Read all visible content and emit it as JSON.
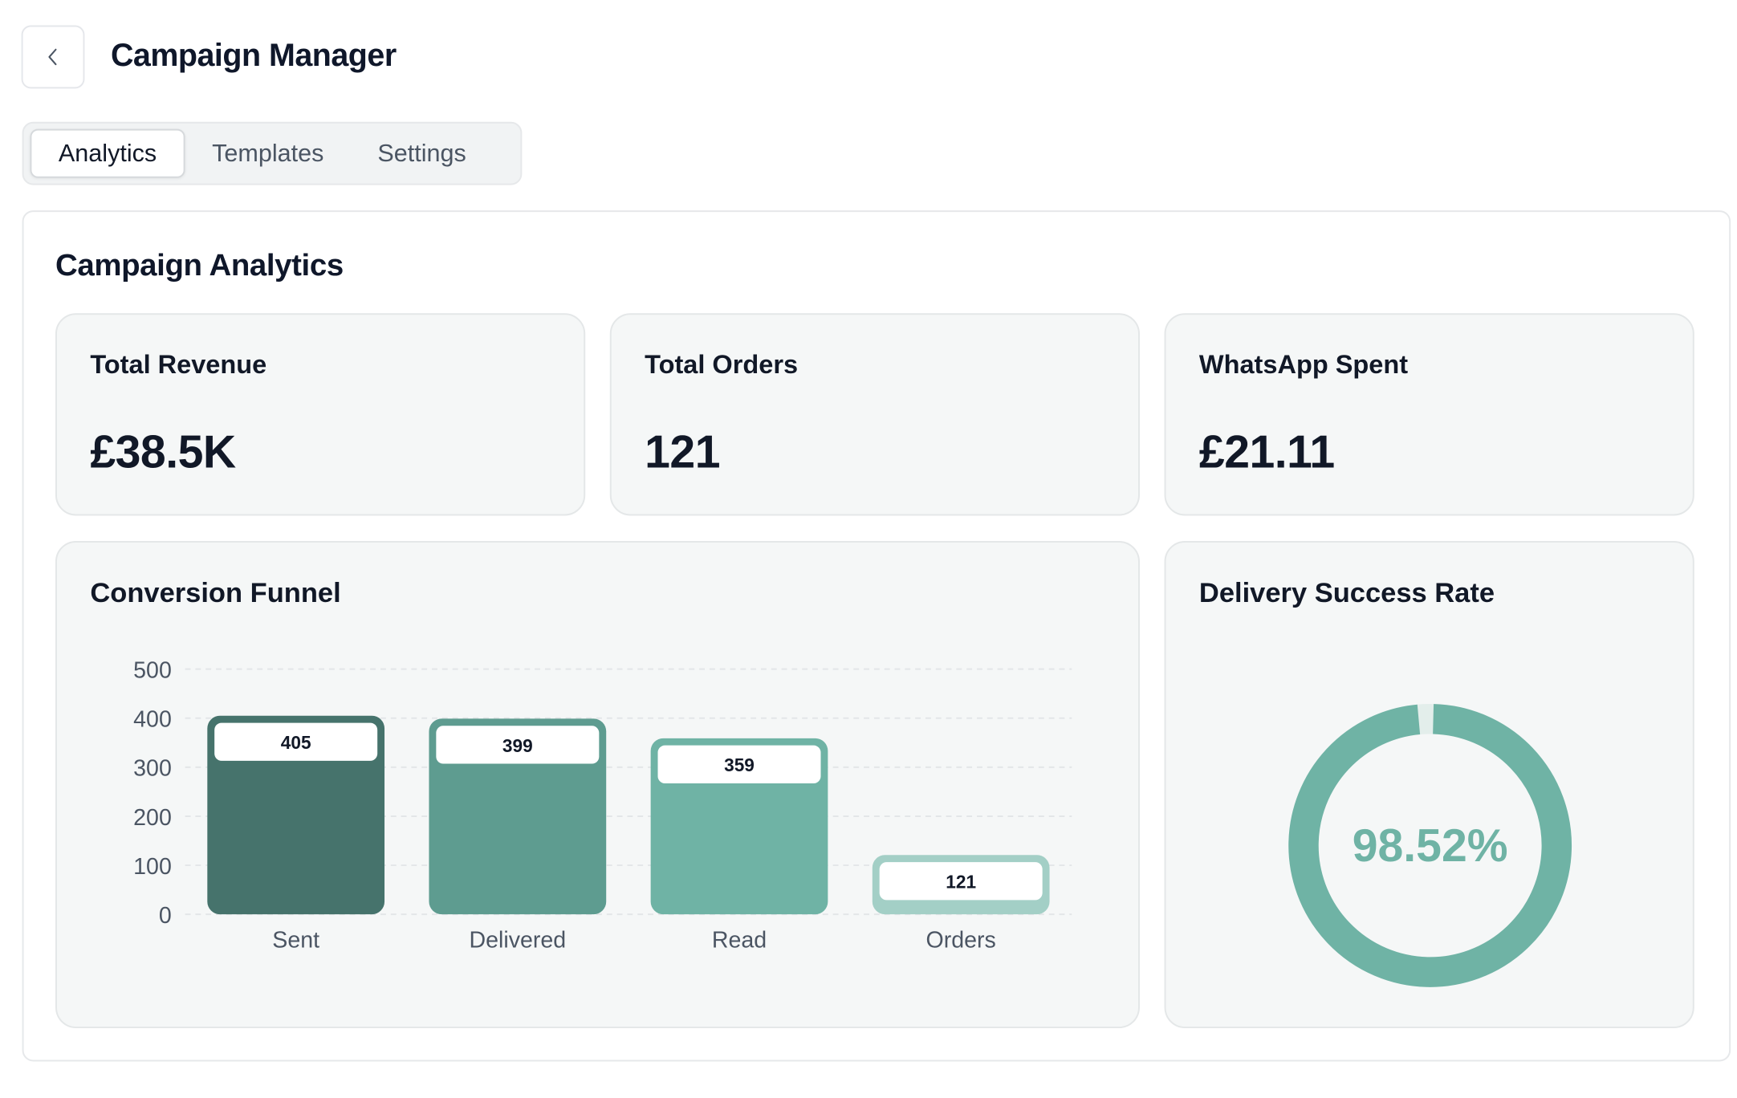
{
  "header": {
    "title": "Campaign Manager",
    "back_icon": "chevron-left-icon"
  },
  "tabs": [
    {
      "label": "Analytics",
      "active": true
    },
    {
      "label": "Templates",
      "active": false
    },
    {
      "label": "Settings",
      "active": false
    }
  ],
  "main": {
    "title": "Campaign Analytics",
    "stats": {
      "revenue": {
        "label": "Total Revenue",
        "value": "£38.5K"
      },
      "orders": {
        "label": "Total Orders",
        "value": "121"
      },
      "whatsapp": {
        "label": "WhatsApp Spent",
        "value": "£21.11"
      }
    },
    "funnel": {
      "title": "Conversion Funnel"
    },
    "delivery": {
      "title": "Delivery Success Rate",
      "value_label": "98.52%"
    }
  },
  "colors": {
    "sent": "#46736c",
    "delivered": "#5e9c90",
    "read": "#6fb3a5",
    "orders": "#a3cfc6",
    "donut": "#6fb3a5",
    "donut_track": "#e3eeeb",
    "grid": "#e3e6e8",
    "axis_text": "#4b5563"
  },
  "chart_data": [
    {
      "type": "bar",
      "title": "Conversion Funnel",
      "categories": [
        "Sent",
        "Delivered",
        "Read",
        "Orders"
      ],
      "values": [
        405,
        399,
        359,
        121
      ],
      "data_labels": [
        "405",
        "399",
        "359",
        "121"
      ],
      "ylim": [
        0,
        500
      ],
      "yticks": [
        0,
        100,
        200,
        300,
        400,
        500
      ],
      "xlabel": "",
      "ylabel": "",
      "grid": true
    },
    {
      "type": "pie",
      "title": "Delivery Success Rate",
      "values": [
        98.52
      ],
      "max": 100,
      "center_label": "98.52%"
    }
  ]
}
